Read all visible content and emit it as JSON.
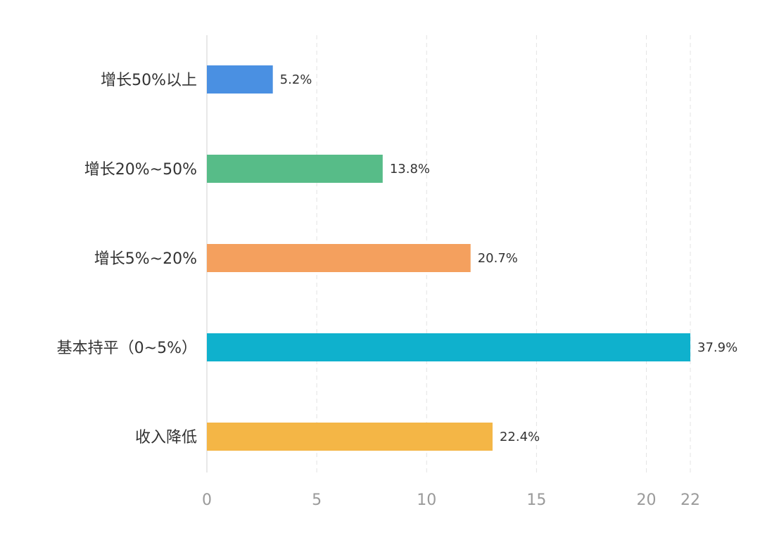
{
  "chart_data": {
    "type": "bar",
    "orientation": "horizontal",
    "categories": [
      "增长50%以上",
      "增长20%~50%",
      "增长5%~20%",
      "基本持平（0~5%）",
      "收入降低"
    ],
    "values": [
      3,
      8,
      12,
      22,
      13
    ],
    "data_labels": [
      "5.2%",
      "13.8%",
      "20.7%",
      "37.9%",
      "22.4%"
    ],
    "colors": [
      "#4a90e2",
      "#57bc88",
      "#f4a05e",
      "#0fb1cd",
      "#f4b646"
    ],
    "x_ticks": [
      0,
      5,
      10,
      15,
      20,
      22
    ],
    "xlim": [
      0,
      22
    ],
    "grid": "vertical-dashed",
    "title": "",
    "xlabel": "",
    "ylabel": "",
    "legend": "none"
  }
}
